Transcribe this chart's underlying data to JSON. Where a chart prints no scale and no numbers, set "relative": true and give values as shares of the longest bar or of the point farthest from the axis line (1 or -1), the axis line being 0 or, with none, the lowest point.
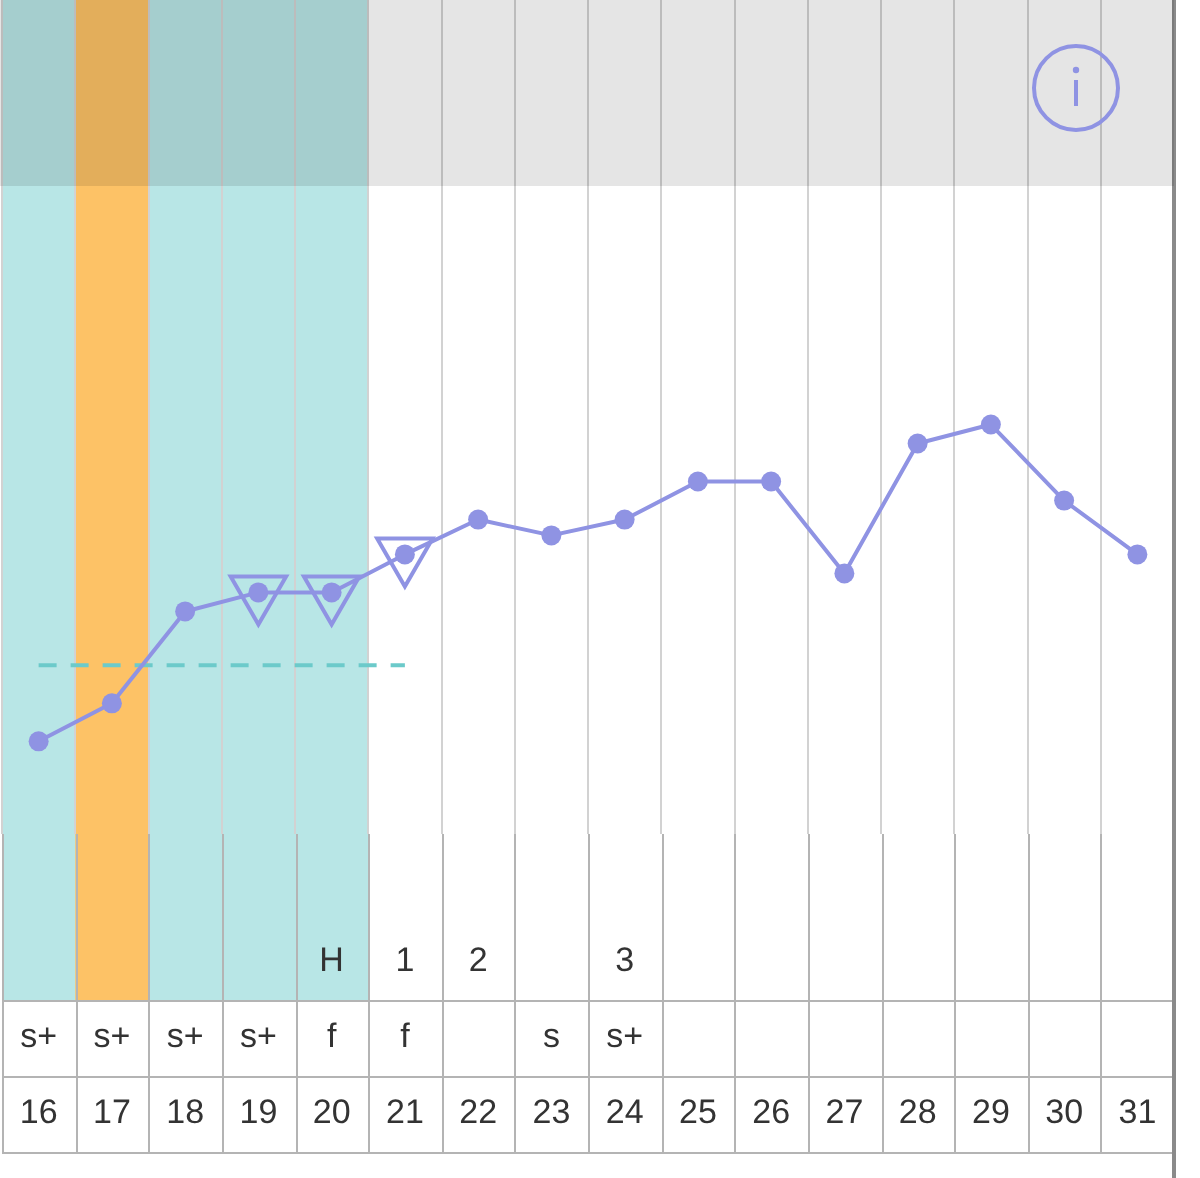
{
  "chart_data": {
    "type": "line",
    "relative": true,
    "grid": true,
    "categories": [
      "s+\n16",
      "s+\n17",
      "s+\n18",
      "s+\n19",
      "H\nf\n20",
      "1\nf\n21",
      "2\n\n22",
      "s\n23",
      "3\ns+\n24",
      "25",
      "26",
      "27",
      "28",
      "29",
      "30",
      "31"
    ],
    "series": [
      {
        "color": "#8f93e3",
        "marker": "circle",
        "values": [
          0,
          0.12,
          0.41,
          0.47,
          0.47,
          0.59,
          0.7,
          0.65,
          0.7,
          0.82,
          0.82,
          0.53,
          0.94,
          1,
          0.76,
          0.59
        ]
      },
      {
        "type": "scatter",
        "color": "#8f93e3",
        "marker": "triangle",
        "values": [
          null,
          null,
          null,
          0.47,
          0.47,
          0.59,
          null,
          null,
          null,
          null,
          null,
          null,
          null,
          null,
          null,
          null
        ]
      },
      {
        "type": "line",
        "color": "#6ccaca",
        "marker": "none",
        "line_style": "dashed",
        "values": [
          0.24,
          0.24,
          0.24,
          0.24,
          0.24,
          0.24,
          null,
          null,
          null,
          null,
          null,
          null,
          null,
          null,
          null,
          null
        ]
      }
    ],
    "bands": [
      {
        "axis": "x",
        "from": "s+\n16",
        "to": "H\nf\n20",
        "color": "#b8e6e6"
      },
      {
        "axis": "x",
        "from": "s+\n17",
        "to": "s+\n17",
        "color": "#fdc266"
      }
    ]
  }
}
